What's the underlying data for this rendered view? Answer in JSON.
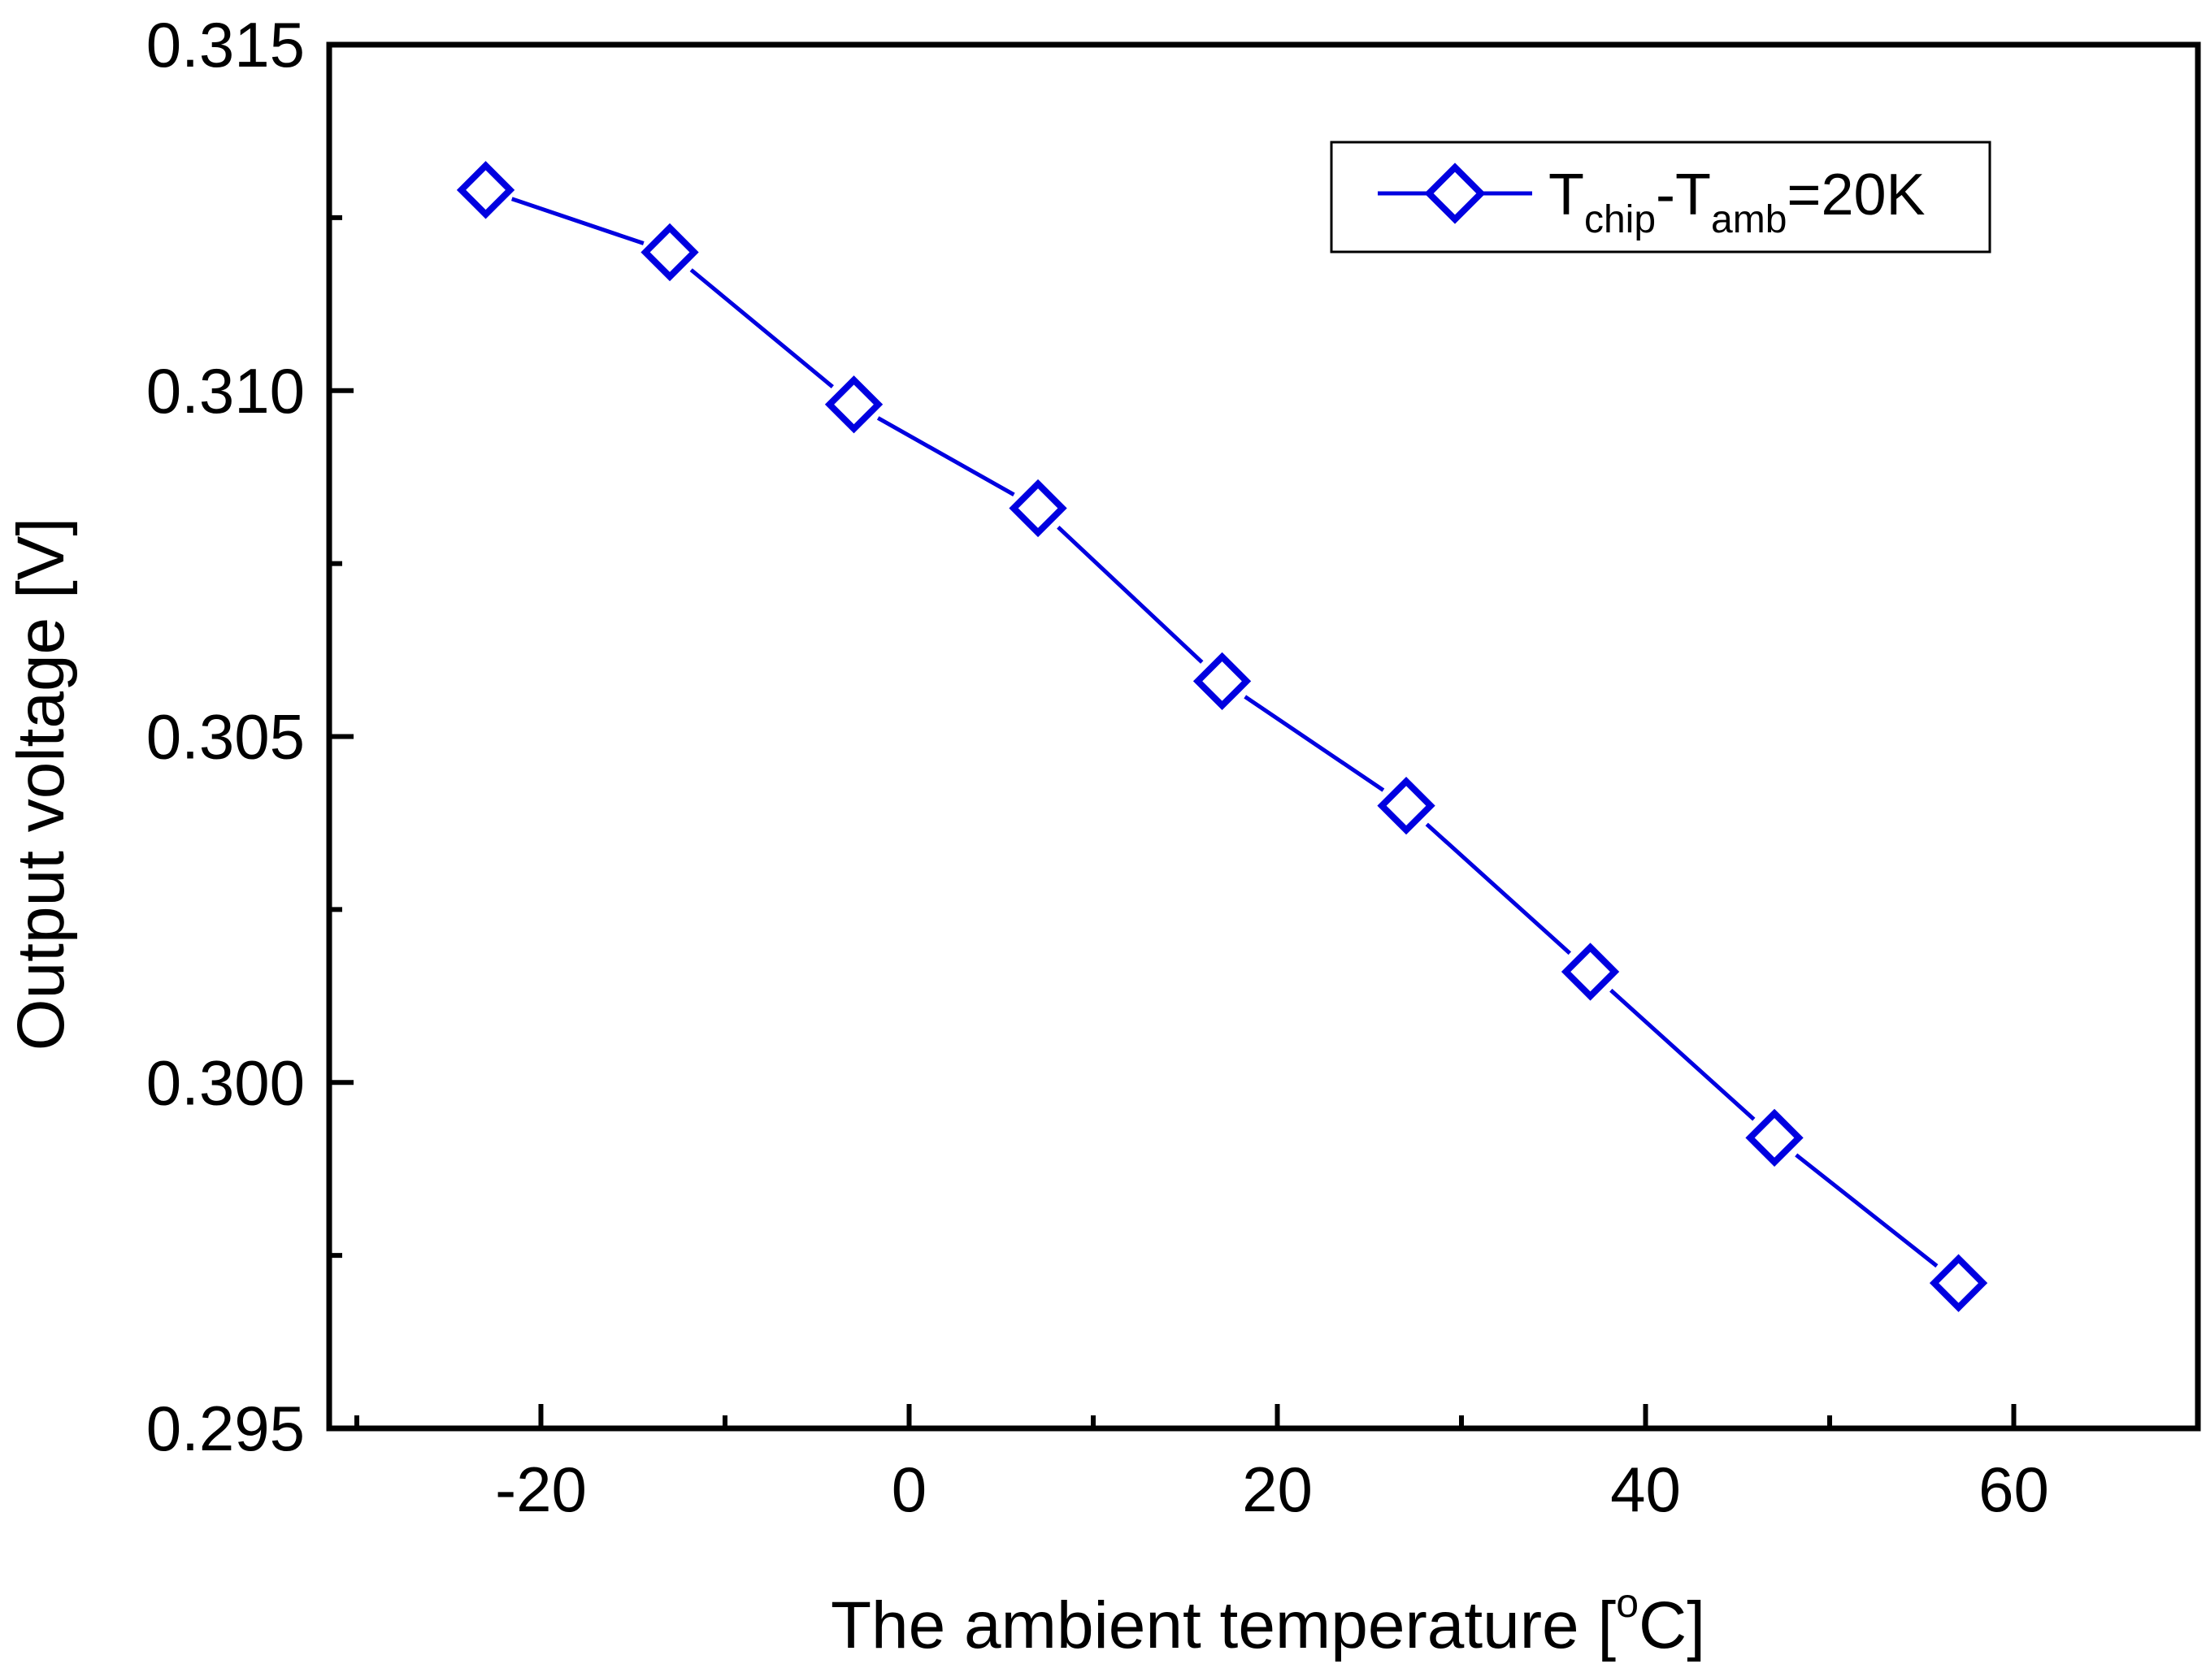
{
  "chart_data": {
    "type": "line",
    "title": "",
    "xlabel": "The ambient temperature [°C]",
    "xlabel_parts": {
      "main": "The ambient temperature [",
      "sup": "o",
      "tail": "C]"
    },
    "ylabel": "Output voltage [V]",
    "xlim": [
      -31.5,
      70
    ],
    "ylim": [
      0.295,
      0.315
    ],
    "x_ticks": [
      -20,
      0,
      20,
      40,
      60
    ],
    "x_tick_labels": [
      "-20",
      "0",
      "20",
      "40",
      "60"
    ],
    "x_minor_ticks": [
      -30,
      -10,
      10,
      30,
      50,
      70
    ],
    "y_ticks": [
      0.295,
      0.3,
      0.305,
      0.31,
      0.315
    ],
    "y_tick_labels": [
      "0.295",
      "0.300",
      "0.305",
      "0.310",
      "0.315"
    ],
    "y_minor_ticks": [
      0.2975,
      0.3025,
      0.3075,
      0.3125
    ],
    "grid": false,
    "legend_position": "top-right",
    "series": [
      {
        "name": "Tchip-Tamb=20K",
        "legend_parts": {
          "T1": "T",
          "sub1": "chip",
          "mid": "-T",
          "sub2": "amb",
          "tail": "=20K"
        },
        "color": "#0000e0",
        "marker": "diamond-open",
        "x": [
          -23,
          -13,
          -3,
          7,
          17,
          27,
          37,
          47,
          57
        ],
        "y": [
          0.3129,
          0.312,
          0.3098,
          0.3083,
          0.3058,
          0.304,
          0.3016,
          0.2992,
          0.2971
        ]
      }
    ]
  }
}
